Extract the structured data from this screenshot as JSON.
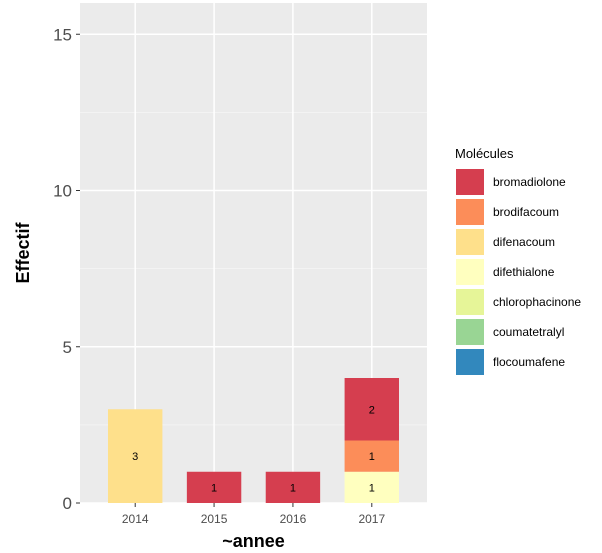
{
  "chart_data": {
    "type": "bar",
    "stacked": true,
    "title": "",
    "xlabel": "~annee",
    "ylabel": "Effectif",
    "ylim": [
      0,
      16
    ],
    "yticks": [
      0,
      5,
      10,
      15
    ],
    "grid": true,
    "legend_position": "right",
    "legend_title": "Molécules",
    "categories": [
      "2014",
      "2015",
      "2016",
      "2017"
    ],
    "series": [
      {
        "name": "bromadiolone",
        "color": "#D53E4F",
        "values": [
          0,
          1,
          1,
          2
        ]
      },
      {
        "name": "brodifacoum",
        "color": "#FC8D59",
        "values": [
          0,
          0,
          0,
          1
        ]
      },
      {
        "name": "difenacoum",
        "color": "#FEE08B",
        "values": [
          3,
          0,
          0,
          0
        ]
      },
      {
        "name": "difethialone",
        "color": "#FFFFBF",
        "values": [
          0,
          0,
          0,
          1
        ]
      },
      {
        "name": "chlorophacinone",
        "color": "#E6F598",
        "values": [
          0,
          0,
          0,
          0
        ]
      },
      {
        "name": "coumatetralyl",
        "color": "#99D594",
        "values": [
          0,
          0,
          0,
          0
        ]
      },
      {
        "name": "flocoumafene",
        "color": "#3288BD",
        "values": [
          0,
          0,
          0,
          0
        ]
      }
    ]
  }
}
